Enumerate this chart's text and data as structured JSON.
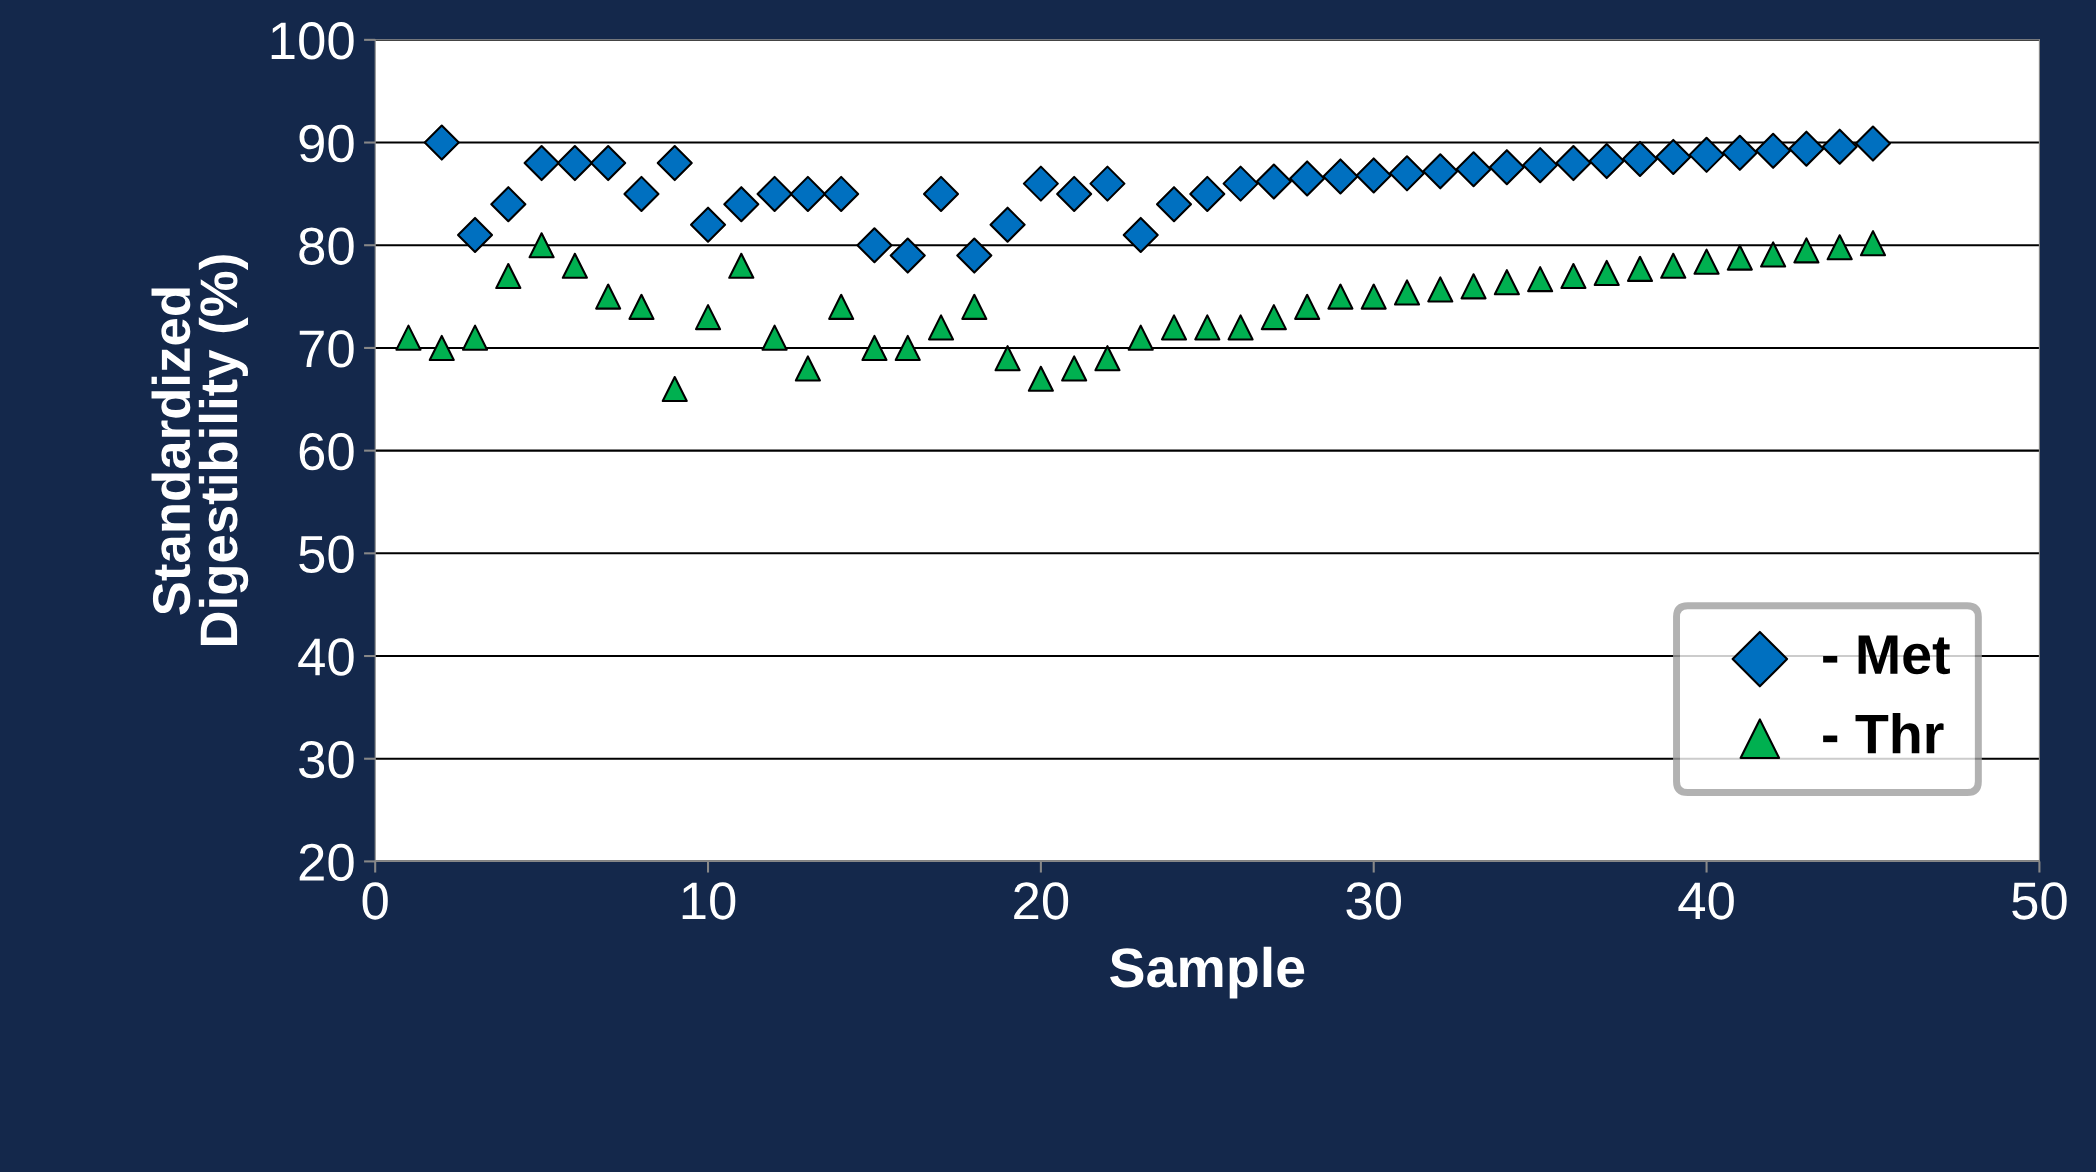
{
  "chart_data": {
    "type": "scatter",
    "xlabel": "Sample",
    "ylabel": "Standardized\nDigestibility (%)",
    "xlim": [
      0,
      50
    ],
    "xticks": [
      0,
      10,
      20,
      30,
      40,
      50
    ],
    "ylim": [
      20,
      100
    ],
    "yticks": [
      20,
      30,
      40,
      50,
      60,
      70,
      80,
      90,
      100
    ],
    "grid": "y",
    "legend": "bottom right",
    "series": [
      {
        "name": "- Met",
        "color": "#0070c0",
        "marker": "diamond",
        "x": [
          2,
          3,
          4,
          5,
          6,
          7,
          8,
          9,
          10,
          11,
          12,
          13,
          14,
          15,
          16,
          17,
          18,
          19,
          20,
          21,
          22,
          23,
          24,
          25,
          26,
          27,
          28,
          29,
          30,
          31,
          32,
          33,
          34,
          35,
          36,
          37,
          38,
          39,
          40,
          41,
          42,
          43,
          44,
          45
        ],
        "values": [
          90,
          81,
          84,
          88,
          88,
          88,
          85,
          88,
          82,
          84,
          85,
          85,
          85,
          80,
          79,
          85,
          79,
          82,
          86,
          85,
          86,
          81,
          84,
          85,
          86,
          86.2,
          86.5,
          86.7,
          86.8,
          87,
          87.2,
          87.4,
          87.6,
          87.8,
          88,
          88.2,
          88.4,
          88.6,
          88.8,
          89,
          89.2,
          89.4,
          89.6,
          89.9
        ]
      },
      {
        "name": "- Thr",
        "color": "#00b050",
        "marker": "triangle",
        "x": [
          1,
          2,
          3,
          4,
          5,
          6,
          7,
          8,
          9,
          10,
          11,
          12,
          13,
          14,
          15,
          16,
          17,
          18,
          19,
          20,
          21,
          22,
          23,
          24,
          25,
          26,
          27,
          28,
          29,
          30,
          31,
          32,
          33,
          34,
          35,
          36,
          37,
          38,
          39,
          40,
          41,
          42,
          43,
          44,
          45
        ],
        "values": [
          71,
          70,
          71,
          77,
          80,
          78,
          75,
          74,
          66,
          73,
          78,
          71,
          68,
          74,
          70,
          70,
          72,
          74,
          69,
          67,
          68,
          69,
          71,
          72,
          72,
          72,
          73,
          74,
          75,
          75,
          75.4,
          75.7,
          76,
          76.4,
          76.7,
          77,
          77.3,
          77.7,
          78,
          78.4,
          78.8,
          79.1,
          79.5,
          79.8,
          80.2
        ]
      }
    ]
  }
}
